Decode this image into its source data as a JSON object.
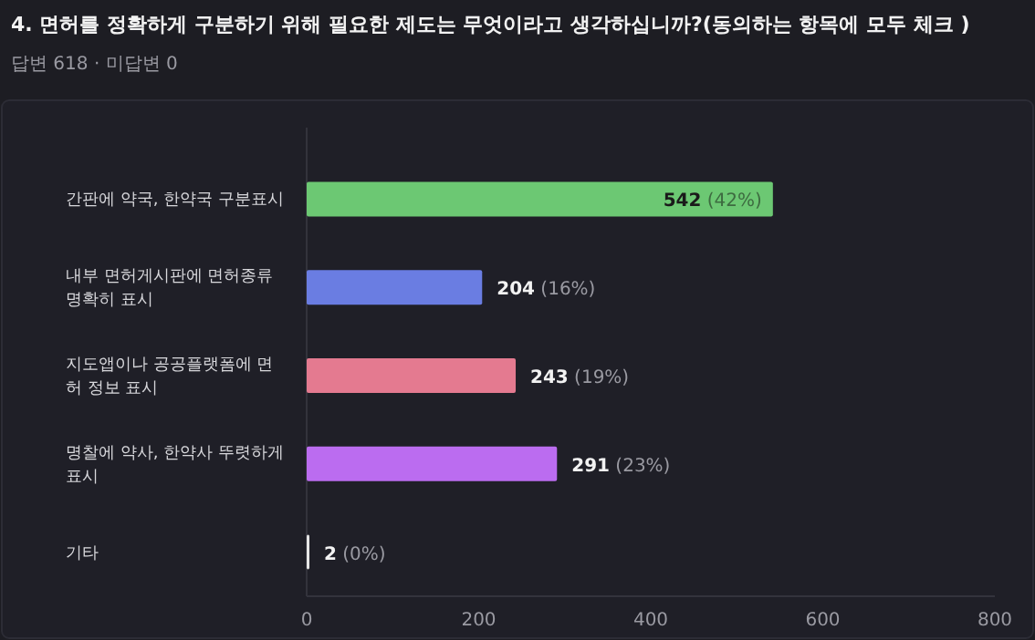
{
  "chart_data": {
    "type": "bar",
    "orientation": "horizontal",
    "title": "4. 면허를 정확하게 구분하기 위해 필요한 제도는 무엇이라고 생각하십니까?(동의하는 항목에 모두 체크 )",
    "subtitle": "답변 618 · 미답변 0",
    "categories": [
      "간판에 약국, 한약국 구분표시",
      "내부 면허게시판에 면허종류 명확히 표시",
      "지도앱이나 공공플랫폼에 면허 정보 표시",
      "명찰에 약사, 한약사 뚜렷하게 표시",
      "기타"
    ],
    "values": [
      542,
      204,
      243,
      291,
      2
    ],
    "colors": [
      "#6cc873",
      "#6a7de2",
      "#e47a90",
      "#bb6cf0",
      "#e6e6e6"
    ],
    "value_labels": [
      "542 (42%)",
      "204 (16%)",
      "243 (19%)",
      "291 (23%)",
      "2 (0%)"
    ],
    "xlim": [
      0,
      800
    ],
    "xticks": [
      0,
      200,
      400,
      600,
      800
    ],
    "grid": false
  }
}
